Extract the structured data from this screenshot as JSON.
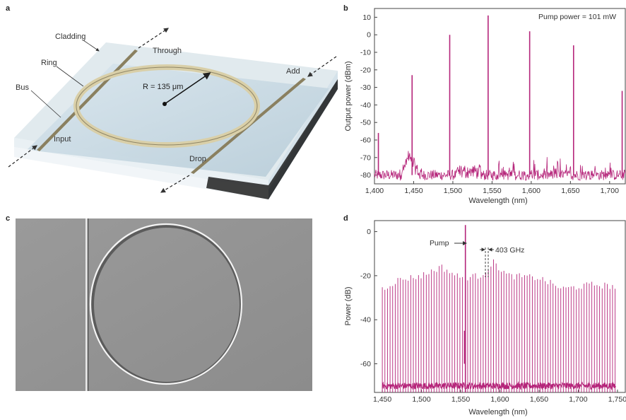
{
  "panels": {
    "a": {
      "letter": "a",
      "labels": {
        "cladding": "Cladding",
        "through": "Through",
        "ring": "Ring",
        "add": "Add",
        "bus": "Bus",
        "radius": "R = 135 μm",
        "input": "Input",
        "drop": "Drop"
      }
    },
    "b": {
      "letter": "b",
      "annotation": "Pump power = 101 mW"
    },
    "c": {
      "letter": "c"
    },
    "d": {
      "letter": "d",
      "pump_label": "Pump",
      "spacing_label": "403 GHz"
    }
  },
  "colors": {
    "trace": "#b5257a",
    "axis": "#444444",
    "text": "#333333"
  },
  "chart_data": [
    {
      "panel": "b",
      "type": "line",
      "xlabel": "Wavelength (nm)",
      "ylabel": "Output power (dBm)",
      "xlim": [
        1400,
        1720
      ],
      "ylim": [
        -85,
        15
      ],
      "xticks": [
        1400,
        1450,
        1500,
        1550,
        1600,
        1650,
        1700
      ],
      "xtick_labels": [
        "1,400",
        "1,450",
        "1,500",
        "1,550",
        "1,600",
        "1,650",
        "1,700"
      ],
      "yticks": [
        10,
        0,
        -10,
        -20,
        -30,
        -40,
        -50,
        -60,
        -70,
        -80
      ],
      "noise_floor": -80,
      "peaks": [
        {
          "x": 1405,
          "y": -56
        },
        {
          "x": 1448,
          "y": -23
        },
        {
          "x": 1496,
          "y": 0
        },
        {
          "x": 1545,
          "y": 11
        },
        {
          "x": 1598,
          "y": 2
        },
        {
          "x": 1654,
          "y": -6
        },
        {
          "x": 1716,
          "y": -32
        }
      ],
      "grid": false
    },
    {
      "panel": "d",
      "type": "line",
      "xlabel": "Wavelength (nm)",
      "ylabel": "Power (dB)",
      "xlim": [
        1440,
        1760
      ],
      "ylim": [
        -73,
        5
      ],
      "xticks": [
        1450,
        1500,
        1550,
        1600,
        1650,
        1700,
        1750
      ],
      "xtick_labels": [
        "1,450",
        "1,500",
        "1,550",
        "1,600",
        "1,650",
        "1,700",
        "1,750"
      ],
      "yticks": [
        0,
        -20,
        -40,
        -60
      ],
      "noise_floor": -70,
      "comb_start": 1450,
      "comb_end": 1748,
      "comb_spacing_nm": 3.3,
      "pump": {
        "x": 1556,
        "y": 3
      },
      "envelope_points": [
        {
          "x": 1450,
          "y": -26
        },
        {
          "x": 1470,
          "y": -22
        },
        {
          "x": 1500,
          "y": -20
        },
        {
          "x": 1525,
          "y": -16
        },
        {
          "x": 1550,
          "y": -21
        },
        {
          "x": 1575,
          "y": -20
        },
        {
          "x": 1592,
          "y": -14
        },
        {
          "x": 1610,
          "y": -20
        },
        {
          "x": 1650,
          "y": -21
        },
        {
          "x": 1680,
          "y": -26
        },
        {
          "x": 1720,
          "y": -24
        },
        {
          "x": 1748,
          "y": -25
        }
      ],
      "grid": false
    }
  ]
}
